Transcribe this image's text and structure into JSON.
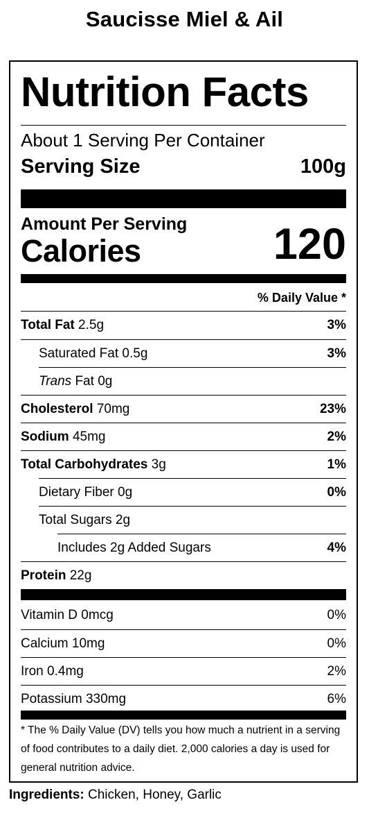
{
  "product_title": "Saucisse Miel & Ail",
  "label": {
    "title": "Nutrition Facts",
    "servings_per_container": "About 1 Serving Per Container",
    "serving_size_label": "Serving Size",
    "serving_size_value": "100g",
    "amount_per_serving": "Amount Per Serving",
    "calories_label": "Calories",
    "calories_value": "120",
    "daily_value_header": "% Daily Value *",
    "nutrients": [
      {
        "name": "Total Fat",
        "amount": "2.5g",
        "dv": "3%"
      },
      {
        "name": "Saturated Fat",
        "amount": "0.5g",
        "dv": "3%"
      },
      {
        "name_italic": "Trans",
        "name": "Fat",
        "amount": "0g",
        "dv": ""
      },
      {
        "name": "Cholesterol",
        "amount": "70mg",
        "dv": "23%"
      },
      {
        "name": "Sodium",
        "amount": "45mg",
        "dv": "2%"
      },
      {
        "name": "Total Carbohydrates",
        "amount": "3g",
        "dv": "1%"
      },
      {
        "name": "Dietary Fiber",
        "amount": "0g",
        "dv": "0%"
      },
      {
        "name": "Total Sugars",
        "amount": "2g",
        "dv": ""
      },
      {
        "name": "Includes 2g Added Sugars",
        "amount": "",
        "dv": "4%"
      },
      {
        "name": "Protein",
        "amount": "22g",
        "dv": ""
      }
    ],
    "vitamins": [
      {
        "name": "Vitamin D",
        "amount": "0mcg",
        "dv": "0%"
      },
      {
        "name": "Calcium",
        "amount": "10mg",
        "dv": "0%"
      },
      {
        "name": "Iron",
        "amount": "0.4mg",
        "dv": "2%"
      },
      {
        "name": "Potassium",
        "amount": "330mg",
        "dv": "6%"
      }
    ],
    "footnote": "* The % Daily Value (DV) tells you how much a nutrient in a serving of food contributes to a daily diet. 2,000 calories a day is used for general nutrition advice."
  },
  "ingredients": {
    "label": "Ingredients:",
    "value": "Chicken, Honey, Garlic"
  }
}
